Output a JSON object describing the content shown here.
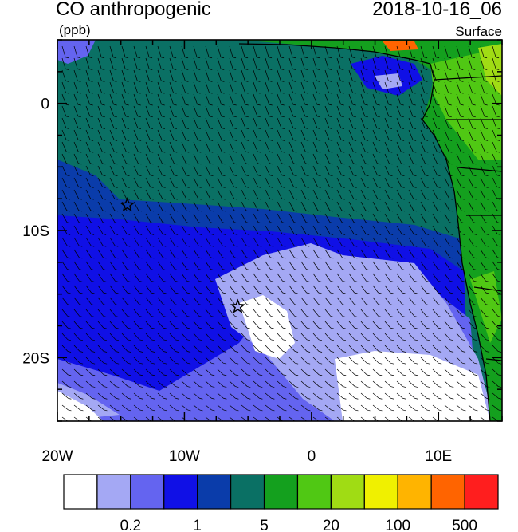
{
  "header": {
    "title": "CO anthropogenic",
    "units": "(ppb)",
    "datetime": "2018-10-16_06",
    "level": "Surface"
  },
  "map": {
    "lon_range": [
      -20,
      15
    ],
    "lat_range": [
      -25,
      5
    ],
    "x_ticks": [
      {
        "value": -20,
        "label": "20W"
      },
      {
        "value": -10,
        "label": "10W"
      },
      {
        "value": 0,
        "label": "0"
      },
      {
        "value": 10,
        "label": "10E"
      }
    ],
    "y_ticks": [
      {
        "value": 0,
        "label": "0"
      },
      {
        "value": -10,
        "label": "10S"
      },
      {
        "value": -20,
        "label": "20S"
      }
    ],
    "markers": [
      {
        "name": "star-marker",
        "lon": -14.5,
        "lat": -8.0
      },
      {
        "name": "star-marker",
        "lon": -5.8,
        "lat": -16.0
      }
    ]
  },
  "colorbar": {
    "colors": [
      "#ffffff",
      "#a4a8f4",
      "#6464f0",
      "#1010e6",
      "#0a3caa",
      "#0a7064",
      "#14a01e",
      "#50c814",
      "#a0dc14",
      "#f0f000",
      "#ffb400",
      "#ff6400",
      "#ff1e1e"
    ],
    "labels": [
      {
        "after_box": 2,
        "text": "0.2"
      },
      {
        "after_box": 4,
        "text": "1"
      },
      {
        "after_box": 6,
        "text": "5"
      },
      {
        "after_box": 8,
        "text": "20"
      },
      {
        "after_box": 10,
        "text": "100"
      },
      {
        "after_box": 12,
        "text": "500"
      }
    ]
  }
}
